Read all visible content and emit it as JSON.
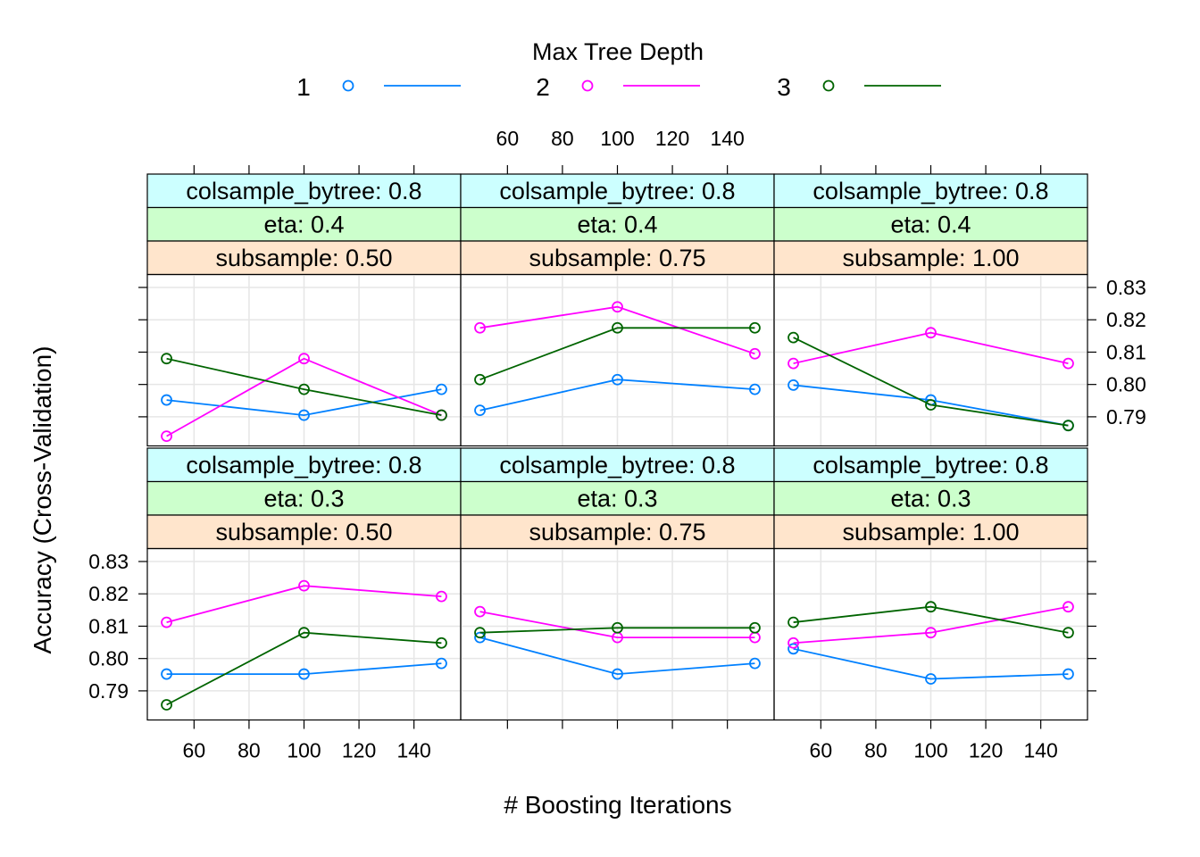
{
  "legend": {
    "title": "Max Tree Depth",
    "items": [
      {
        "label": "1",
        "color": "#0080ff"
      },
      {
        "label": "2",
        "color": "#ff00ff"
      },
      {
        "label": "3",
        "color": "#006400"
      }
    ]
  },
  "axes": {
    "xlabel": "# Boosting Iterations",
    "ylabel": "Accuracy (Cross-Validation)",
    "xlim": [
      43,
      157
    ],
    "ylim": [
      0.781,
      0.834
    ],
    "xticks": [
      60,
      80,
      100,
      120,
      140
    ],
    "xtick_labels": [
      "60",
      "80",
      "100",
      "120",
      "140"
    ],
    "yticks": [
      0.79,
      0.8,
      0.81,
      0.82,
      0.83
    ],
    "ytick_labels": [
      "0.79",
      "0.80",
      "0.81",
      "0.82",
      "0.83"
    ]
  },
  "chart_data": {
    "type": "line",
    "xlabel": "# Boosting Iterations",
    "ylabel": "Accuracy (Cross-Validation)",
    "grid": true,
    "legend_position": "top",
    "x": [
      50,
      100,
      150
    ],
    "panels": [
      {
        "strips": [
          "colsample_bytree: 0.8",
          "eta: 0.4",
          "subsample: 0.50"
        ],
        "series": [
          {
            "name": "1",
            "values": [
              0.7952,
              0.7905,
              0.7985
            ]
          },
          {
            "name": "2",
            "values": [
              0.784,
              0.808,
              0.7905
            ]
          },
          {
            "name": "3",
            "values": [
              0.808,
              0.7985,
              0.7905
            ]
          }
        ]
      },
      {
        "strips": [
          "colsample_bytree: 0.8",
          "eta: 0.4",
          "subsample: 0.75"
        ],
        "series": [
          {
            "name": "1",
            "values": [
              0.792,
              0.8015,
              0.7985
            ]
          },
          {
            "name": "2",
            "values": [
              0.8175,
              0.824,
              0.8095
            ]
          },
          {
            "name": "3",
            "values": [
              0.8015,
              0.8175,
              0.8175
            ]
          }
        ]
      },
      {
        "strips": [
          "colsample_bytree: 0.8",
          "eta: 0.4",
          "subsample: 1.00"
        ],
        "series": [
          {
            "name": "1",
            "values": [
              0.7998,
              0.7952,
              0.7873
            ]
          },
          {
            "name": "2",
            "values": [
              0.8065,
              0.816,
              0.8065
            ]
          },
          {
            "name": "3",
            "values": [
              0.8145,
              0.7937,
              0.7873
            ]
          }
        ]
      },
      {
        "strips": [
          "colsample_bytree: 0.8",
          "eta: 0.3",
          "subsample: 0.50"
        ],
        "series": [
          {
            "name": "1",
            "values": [
              0.7952,
              0.7952,
              0.7985
            ]
          },
          {
            "name": "2",
            "values": [
              0.8112,
              0.8225,
              0.8192
            ]
          },
          {
            "name": "3",
            "values": [
              0.7857,
              0.808,
              0.8048
            ]
          }
        ]
      },
      {
        "strips": [
          "colsample_bytree: 0.8",
          "eta: 0.3",
          "subsample: 0.75"
        ],
        "series": [
          {
            "name": "1",
            "values": [
              0.8065,
              0.7952,
              0.7985
            ]
          },
          {
            "name": "2",
            "values": [
              0.8145,
              0.8065,
              0.8065
            ]
          },
          {
            "name": "3",
            "values": [
              0.808,
              0.8095,
              0.8095
            ]
          }
        ]
      },
      {
        "strips": [
          "colsample_bytree: 0.8",
          "eta: 0.3",
          "subsample: 1.00"
        ],
        "series": [
          {
            "name": "1",
            "values": [
              0.803,
              0.7937,
              0.7952
            ]
          },
          {
            "name": "2",
            "values": [
              0.8048,
              0.808,
              0.816
            ]
          },
          {
            "name": "3",
            "values": [
              0.8112,
              0.816,
              0.808
            ]
          }
        ]
      }
    ]
  },
  "colors": {
    "strip_top": "#ccffff",
    "strip_mid": "#ccffcc",
    "strip_bottom": "#ffe5cc",
    "grid": "#e6e6e6"
  }
}
